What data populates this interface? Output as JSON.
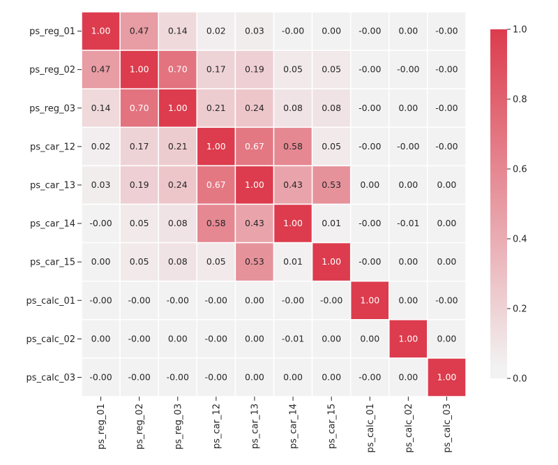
{
  "chart_data": {
    "type": "heatmap",
    "title": "",
    "xlabel": "",
    "ylabel": "",
    "rows": [
      "ps_reg_01",
      "ps_reg_02",
      "ps_reg_03",
      "ps_car_12",
      "ps_car_13",
      "ps_car_14",
      "ps_car_15",
      "ps_calc_01",
      "ps_calc_02",
      "ps_calc_03"
    ],
    "columns": [
      "ps_reg_01",
      "ps_reg_02",
      "ps_reg_03",
      "ps_car_12",
      "ps_car_13",
      "ps_car_14",
      "ps_car_15",
      "ps_calc_01",
      "ps_calc_02",
      "ps_calc_03"
    ],
    "cell_labels": [
      [
        "1.00",
        "0.47",
        "0.14",
        "0.02",
        "0.03",
        "-0.00",
        "0.00",
        "-0.00",
        "0.00",
        "-0.00"
      ],
      [
        "0.47",
        "1.00",
        "0.70",
        "0.17",
        "0.19",
        "0.05",
        "0.05",
        "-0.00",
        "-0.00",
        "-0.00"
      ],
      [
        "0.14",
        "0.70",
        "1.00",
        "0.21",
        "0.24",
        "0.08",
        "0.08",
        "-0.00",
        "0.00",
        "-0.00"
      ],
      [
        "0.02",
        "0.17",
        "0.21",
        "1.00",
        "0.67",
        "0.58",
        "0.05",
        "-0.00",
        "-0.00",
        "-0.00"
      ],
      [
        "0.03",
        "0.19",
        "0.24",
        "0.67",
        "1.00",
        "0.43",
        "0.53",
        "0.00",
        "0.00",
        "0.00"
      ],
      [
        "-0.00",
        "0.05",
        "0.08",
        "0.58",
        "0.43",
        "1.00",
        "0.01",
        "-0.00",
        "-0.01",
        "0.00"
      ],
      [
        "0.00",
        "0.05",
        "0.08",
        "0.05",
        "0.53",
        "0.01",
        "1.00",
        "-0.00",
        "0.00",
        "0.00"
      ],
      [
        "-0.00",
        "-0.00",
        "-0.00",
        "-0.00",
        "0.00",
        "-0.00",
        "-0.00",
        "1.00",
        "0.00",
        "-0.00"
      ],
      [
        "0.00",
        "-0.00",
        "0.00",
        "-0.00",
        "0.00",
        "-0.01",
        "0.00",
        "0.00",
        "1.00",
        "0.00"
      ],
      [
        "-0.00",
        "-0.00",
        "-0.00",
        "-0.00",
        "0.00",
        "0.00",
        "0.00",
        "-0.00",
        "0.00",
        "1.00"
      ]
    ],
    "colorbar": {
      "vmin": 0.0,
      "vmax": 1.0,
      "ticks": [
        1.0,
        0.8,
        0.6,
        0.4,
        0.2,
        0.0
      ],
      "tick_labels": [
        "1.0",
        "0.8",
        "0.6",
        "0.4",
        "0.2",
        "0.0"
      ]
    },
    "colors": {
      "low": "#f2f2f2",
      "high": "#dc3c4d",
      "cell_border": "#ffffff",
      "text_dark": "#262626",
      "text_light": "#ffffff",
      "tick": "#262626"
    },
    "grid": false,
    "legend": "colorbar-right"
  }
}
